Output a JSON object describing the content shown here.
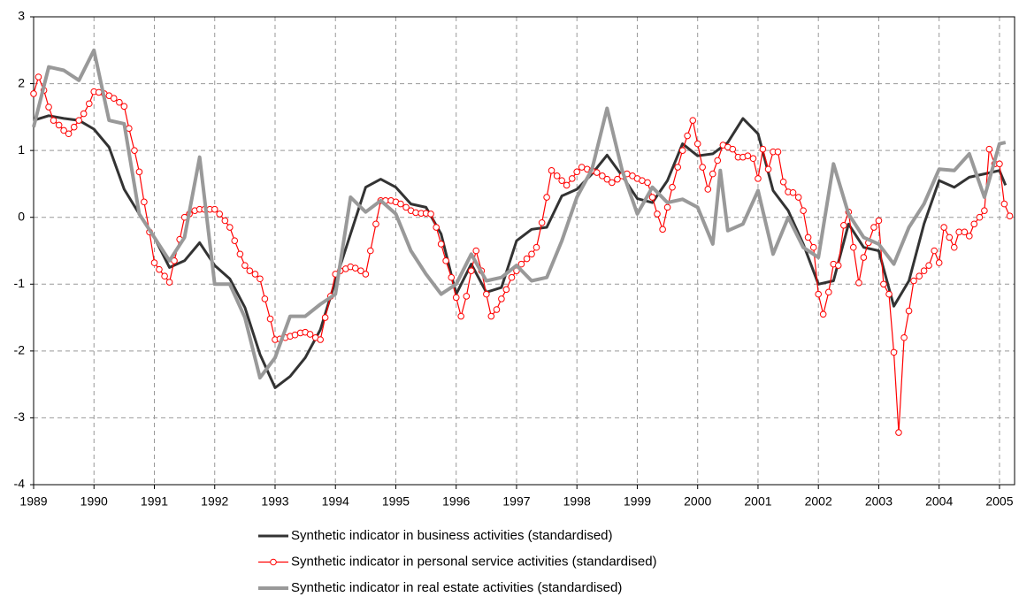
{
  "chart_data": {
    "type": "line",
    "xlim": [
      1989,
      2005.25
    ],
    "ylim": [
      -4,
      3
    ],
    "xticks": [
      1989,
      1990,
      1991,
      1992,
      1993,
      1994,
      1995,
      1996,
      1997,
      1998,
      1999,
      2000,
      2001,
      2002,
      2003,
      2004,
      2005
    ],
    "yticks": [
      -4,
      -3,
      -2,
      -1,
      0,
      1,
      2,
      3
    ],
    "grid": true,
    "legend": "bottom",
    "series": [
      {
        "name": "Synthetic indicator in business activities (standardised)",
        "color": "#333333",
        "width": 3,
        "marker": "none",
        "x": [
          1989,
          1989.25,
          1989.5,
          1989.75,
          1990,
          1990.25,
          1990.5,
          1990.75,
          1991,
          1991.25,
          1991.5,
          1991.75,
          1992,
          1992.25,
          1992.5,
          1992.75,
          1993,
          1993.25,
          1993.5,
          1993.75,
          1994,
          1994.25,
          1994.5,
          1994.75,
          1995,
          1995.25,
          1995.5,
          1995.75,
          1996,
          1996.25,
          1996.5,
          1996.75,
          1997,
          1997.25,
          1997.5,
          1997.75,
          1998,
          1998.25,
          1998.5,
          1998.75,
          1999,
          1999.25,
          1999.5,
          1999.75,
          2000,
          2000.25,
          2000.5,
          2000.75,
          2001,
          2001.25,
          2001.5,
          2001.75,
          2002,
          2002.25,
          2002.5,
          2002.75,
          2003,
          2003.25,
          2003.5,
          2003.75,
          2004,
          2004.25,
          2004.5,
          2004.75,
          2005,
          2005.1
        ],
        "values": [
          1.45,
          1.52,
          1.48,
          1.45,
          1.32,
          1.05,
          0.42,
          0.05,
          -0.3,
          -0.75,
          -0.65,
          -0.38,
          -0.72,
          -0.92,
          -1.35,
          -2.05,
          -2.55,
          -2.38,
          -2.1,
          -1.68,
          -0.95,
          -0.25,
          0.45,
          0.57,
          0.45,
          0.2,
          0.15,
          -0.25,
          -1.15,
          -0.7,
          -1.12,
          -1.05,
          -0.35,
          -0.18,
          -0.15,
          0.32,
          0.42,
          0.65,
          0.93,
          0.62,
          0.28,
          0.22,
          0.55,
          1.1,
          0.92,
          0.95,
          1.12,
          1.48,
          1.25,
          0.4,
          0.1,
          -0.4,
          -1.0,
          -0.95,
          -0.1,
          -0.45,
          -0.5,
          -1.33,
          -0.95,
          -0.1,
          0.55,
          0.45,
          0.6,
          0.65,
          0.7,
          0.48
        ]
      },
      {
        "name": "Synthetic indicator in personal service activities (standardised)",
        "color": "#ff0000",
        "width": 1.2,
        "marker": "circle",
        "x": [
          1989,
          1989.08,
          1989.17,
          1989.25,
          1989.33,
          1989.42,
          1989.5,
          1989.58,
          1989.67,
          1989.75,
          1989.83,
          1989.92,
          1990,
          1990.08,
          1990.17,
          1990.25,
          1990.33,
          1990.42,
          1990.5,
          1990.58,
          1990.67,
          1990.75,
          1990.83,
          1990.92,
          1991,
          1991.08,
          1991.17,
          1991.25,
          1991.33,
          1991.42,
          1991.5,
          1991.58,
          1991.67,
          1991.75,
          1991.83,
          1991.92,
          1992,
          1992.08,
          1992.17,
          1992.25,
          1992.33,
          1992.42,
          1992.5,
          1992.58,
          1992.67,
          1992.75,
          1992.83,
          1992.92,
          1993,
          1993.08,
          1993.17,
          1993.25,
          1993.33,
          1993.42,
          1993.5,
          1993.58,
          1993.67,
          1993.75,
          1993.83,
          1993.92,
          1994,
          1994.08,
          1994.17,
          1994.25,
          1994.33,
          1994.42,
          1994.5,
          1994.58,
          1994.67,
          1994.75,
          1994.83,
          1994.92,
          1995,
          1995.08,
          1995.17,
          1995.25,
          1995.33,
          1995.42,
          1995.5,
          1995.58,
          1995.67,
          1995.75,
          1995.83,
          1995.92,
          1996,
          1996.08,
          1996.17,
          1996.25,
          1996.33,
          1996.42,
          1996.5,
          1996.58,
          1996.67,
          1996.75,
          1996.83,
          1996.92,
          1997,
          1997.08,
          1997.17,
          1997.25,
          1997.33,
          1997.42,
          1997.5,
          1997.58,
          1997.67,
          1997.75,
          1997.83,
          1997.92,
          1998,
          1998.08,
          1998.17,
          1998.25,
          1998.33,
          1998.42,
          1998.5,
          1998.58,
          1998.67,
          1998.75,
          1998.83,
          1998.92,
          1999,
          1999.08,
          1999.17,
          1999.25,
          1999.33,
          1999.42,
          1999.5,
          1999.58,
          1999.67,
          1999.75,
          1999.83,
          1999.92,
          2000,
          2000.08,
          2000.17,
          2000.25,
          2000.33,
          2000.42,
          2000.5,
          2000.58,
          2000.67,
          2000.75,
          2000.83,
          2000.92,
          2001,
          2001.08,
          2001.17,
          2001.25,
          2001.33,
          2001.42,
          2001.5,
          2001.58,
          2001.67,
          2001.75,
          2001.83,
          2001.92,
          2002,
          2002.08,
          2002.17,
          2002.25,
          2002.33,
          2002.42,
          2002.5,
          2002.58,
          2002.67,
          2002.75,
          2002.83,
          2002.92,
          2003,
          2003.08,
          2003.17,
          2003.25,
          2003.33,
          2003.42,
          2003.5,
          2003.58,
          2003.67,
          2003.75,
          2003.83,
          2003.92,
          2004,
          2004.08,
          2004.17,
          2004.25,
          2004.33,
          2004.42,
          2004.5,
          2004.58,
          2004.67,
          2004.75,
          2004.83,
          2004.92,
          2005,
          2005.08,
          2005.17
        ],
        "values": [
          1.85,
          2.1,
          1.9,
          1.65,
          1.45,
          1.38,
          1.3,
          1.25,
          1.35,
          1.45,
          1.55,
          1.7,
          1.88,
          1.87,
          1.85,
          1.82,
          1.78,
          1.72,
          1.66,
          1.33,
          1.0,
          0.68,
          0.23,
          -0.22,
          -0.68,
          -0.78,
          -0.88,
          -0.97,
          -0.65,
          -0.33,
          0.0,
          0.05,
          0.1,
          0.12,
          0.12,
          0.12,
          0.12,
          0.05,
          -0.05,
          -0.15,
          -0.35,
          -0.55,
          -0.72,
          -0.8,
          -0.85,
          -0.92,
          -1.22,
          -1.52,
          -1.83,
          -1.82,
          -1.8,
          -1.78,
          -1.76,
          -1.73,
          -1.72,
          -1.75,
          -1.8,
          -1.83,
          -1.5,
          -1.18,
          -0.85,
          -0.8,
          -0.77,
          -0.74,
          -0.76,
          -0.8,
          -0.85,
          -0.5,
          -0.1,
          0.25,
          0.25,
          0.25,
          0.23,
          0.2,
          0.15,
          0.1,
          0.07,
          0.06,
          0.06,
          0.05,
          -0.15,
          -0.4,
          -0.65,
          -0.9,
          -1.2,
          -1.48,
          -1.18,
          -0.8,
          -0.5,
          -0.8,
          -1.15,
          -1.48,
          -1.38,
          -1.22,
          -1.08,
          -0.9,
          -0.8,
          -0.7,
          -0.62,
          -0.55,
          -0.45,
          -0.08,
          0.3,
          0.7,
          0.62,
          0.55,
          0.48,
          0.58,
          0.68,
          0.75,
          0.72,
          0.7,
          0.67,
          0.62,
          0.57,
          0.52,
          0.57,
          0.62,
          0.65,
          0.62,
          0.58,
          0.55,
          0.52,
          0.3,
          0.05,
          -0.18,
          0.15,
          0.45,
          0.75,
          1.0,
          1.22,
          1.45,
          1.1,
          0.75,
          0.42,
          0.65,
          0.85,
          1.08,
          1.05,
          1.02,
          0.9,
          0.9,
          0.92,
          0.88,
          0.58,
          1.02,
          0.72,
          0.98,
          0.98,
          0.53,
          0.38,
          0.37,
          0.3,
          0.1,
          -0.3,
          -0.45,
          -1.15,
          -1.45,
          -1.12,
          -0.7,
          -0.72,
          -0.12,
          0.08,
          -0.45,
          -0.98,
          -0.6,
          -0.38,
          -0.15,
          -0.05,
          -1.0,
          -1.15,
          -2.02,
          -3.22,
          -1.8,
          -1.4,
          -0.95,
          -0.88,
          -0.8,
          -0.72,
          -0.5,
          -0.68,
          -0.15,
          -0.3,
          -0.45,
          -0.22,
          -0.22,
          -0.28,
          -0.1,
          0.0,
          0.1,
          1.02,
          0.8,
          0.8,
          0.2,
          0.02
        ]
      },
      {
        "name": "Synthetic indicator in real estate activities (standardised)",
        "color": "#999999",
        "width": 4,
        "marker": "none",
        "x": [
          1989,
          1989.25,
          1989.5,
          1989.75,
          1990,
          1990.25,
          1990.5,
          1990.75,
          1991,
          1991.25,
          1991.5,
          1991.75,
          1992,
          1992.25,
          1992.5,
          1992.75,
          1993,
          1993.25,
          1993.5,
          1993.75,
          1994,
          1994.25,
          1994.5,
          1994.75,
          1995,
          1995.25,
          1995.5,
          1995.75,
          1996,
          1996.25,
          1996.5,
          1996.75,
          1997,
          1997.25,
          1997.5,
          1997.75,
          1998,
          1998.25,
          1998.5,
          1998.75,
          1999,
          1999.25,
          1999.5,
          1999.75,
          2000,
          2000.25,
          2000.375,
          2000.5,
          2000.75,
          2001,
          2001.25,
          2001.5,
          2001.75,
          2002,
          2002.25,
          2002.5,
          2002.75,
          2003,
          2003.25,
          2003.5,
          2003.75,
          2004,
          2004.25,
          2004.5,
          2004.75,
          2005,
          2005.1
        ],
        "values": [
          1.35,
          2.25,
          2.2,
          2.05,
          2.5,
          1.45,
          1.4,
          0.05,
          -0.3,
          -0.65,
          -0.3,
          0.9,
          -1.0,
          -1.0,
          -1.5,
          -2.4,
          -2.1,
          -1.48,
          -1.48,
          -1.3,
          -1.15,
          0.3,
          0.08,
          0.25,
          0.05,
          -0.5,
          -0.85,
          -1.15,
          -1.0,
          -0.55,
          -0.95,
          -0.9,
          -0.72,
          -0.95,
          -0.9,
          -0.35,
          0.3,
          0.72,
          1.63,
          0.7,
          0.05,
          0.45,
          0.22,
          0.27,
          0.15,
          -0.4,
          0.7,
          -0.2,
          -0.1,
          0.4,
          -0.55,
          0.0,
          -0.45,
          -0.6,
          0.8,
          0.05,
          -0.3,
          -0.4,
          -0.7,
          -0.15,
          0.2,
          0.72,
          0.7,
          0.95,
          0.3,
          1.1,
          1.12
        ]
      }
    ]
  }
}
